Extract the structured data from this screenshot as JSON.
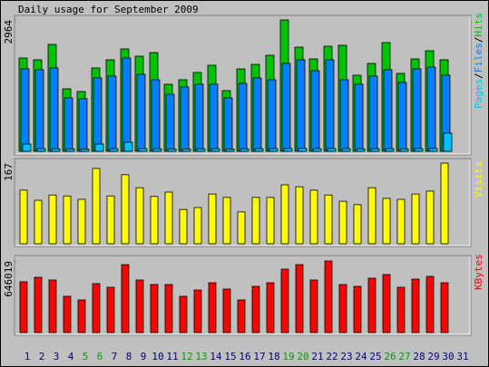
{
  "title": "Daily usage for September 2009",
  "chart_data": [
    {
      "type": "bar",
      "legend_separator": "/",
      "ylim": [
        0,
        2964
      ],
      "yticks": [
        2964
      ],
      "series": [
        {
          "name": "Hits",
          "color": "#00c000",
          "values": [
            2105,
            2065,
            2412,
            1410,
            1349,
            1881,
            2065,
            2310,
            2146,
            2228,
            1513,
            1615,
            1779,
            1942,
            1370,
            1860,
            1962,
            2167,
            2964,
            2351,
            2085,
            2371,
            2392,
            1717,
            1983,
            2453,
            1758,
            2085,
            2269,
            2065,
            0
          ]
        },
        {
          "name": "Files",
          "color": "#0080ff",
          "values": [
            1860,
            1840,
            1881,
            1206,
            1186,
            1656,
            1697,
            2105,
            1738,
            1615,
            1288,
            1452,
            1513,
            1513,
            1206,
            1533,
            1656,
            1615,
            1983,
            2065,
            1819,
            2065,
            1615,
            1513,
            1697,
            1840,
            1554,
            1860,
            1901,
            1717,
            0
          ]
        },
        {
          "name": "Pages",
          "color": "#00c0ff",
          "values": [
            164,
            61,
            58,
            55,
            52,
            164,
            60,
            205,
            62,
            58,
            56,
            54,
            57,
            60,
            52,
            58,
            61,
            62,
            64,
            66,
            60,
            63,
            60,
            57,
            59,
            61,
            56,
            62,
            64,
            409,
            0
          ]
        }
      ]
    },
    {
      "type": "bar",
      "ylim": [
        0,
        167
      ],
      "yticks": [
        167
      ],
      "series": [
        {
          "name": "Visits",
          "color": "#ffff00",
          "values": [
            111,
            90,
            101,
            99,
            92,
            156,
            99,
            143,
            116,
            98,
            107,
            71,
            75,
            103,
            96,
            66,
            96,
            96,
            122,
            118,
            111,
            101,
            88,
            81,
            116,
            94,
            92,
            103,
            109,
            167,
            0
          ]
        }
      ]
    },
    {
      "type": "bar",
      "ylim": [
        0,
        646019
      ],
      "yticks": [
        646019
      ],
      "categories": [
        "1",
        "2",
        "3",
        "4",
        "5",
        "6",
        "7",
        "8",
        "9",
        "10",
        "11",
        "12",
        "13",
        "14",
        "15",
        "16",
        "17",
        "18",
        "19",
        "20",
        "21",
        "22",
        "23",
        "24",
        "25",
        "26",
        "27",
        "28",
        "29",
        "30",
        "31"
      ],
      "category_colors": [
        "#000080",
        "#000080",
        "#000080",
        "#000080",
        "#00a000",
        "#00a000",
        "#000080",
        "#000080",
        "#000080",
        "#000080",
        "#000080",
        "#00a000",
        "#00a000",
        "#000080",
        "#000080",
        "#000080",
        "#000080",
        "#000080",
        "#00a000",
        "#00a000",
        "#000080",
        "#000080",
        "#000080",
        "#000080",
        "#000080",
        "#00a000",
        "#00a000",
        "#000080",
        "#000080",
        "#000080",
        "#000080"
      ],
      "series": [
        {
          "name": "KBytes",
          "color": "#ff0000",
          "values": [
            457900,
            498800,
            474300,
            327100,
            294400,
            441600,
            408900,
            613300,
            474300,
            433400,
            433400,
            327100,
            384300,
            449700,
            392500,
            294400,
            417000,
            449700,
            572400,
            613300,
            474300,
            646019,
            433400,
            417000,
            490600,
            523300,
            408900,
            482400,
            507000,
            449700,
            0
          ]
        }
      ]
    }
  ]
}
